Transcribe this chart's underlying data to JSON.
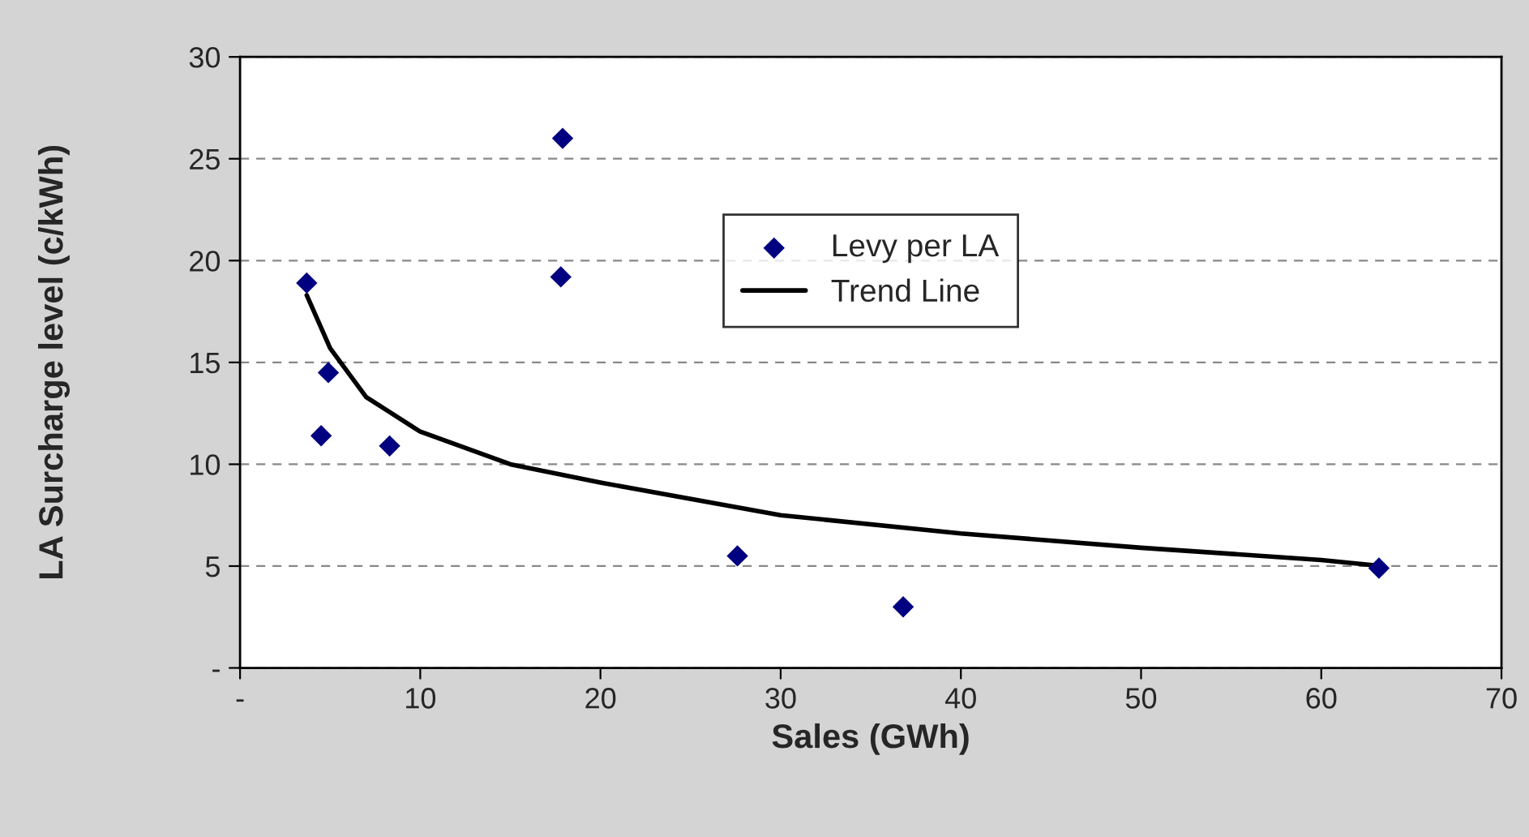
{
  "chart_data": {
    "type": "scatter",
    "xlabel": "Sales (GWh)",
    "ylabel": "LA Surcharge level (c/kWh)",
    "series": [
      {
        "name": "Levy per LA",
        "color": "#000080",
        "marker": "diamond",
        "x": [
          3.7,
          4.9,
          4.5,
          8.3,
          17.9,
          17.8,
          27.6,
          36.8,
          63.2
        ],
        "values": [
          18.9,
          14.5,
          11.4,
          10.9,
          26.0,
          19.2,
          5.5,
          3.0,
          4.9
        ]
      },
      {
        "name": "Trend Line",
        "type": "line",
        "color": "#000000",
        "marker": "none",
        "line_style": "solid",
        "x": [
          3.7,
          5,
          7,
          10,
          15,
          20,
          30,
          40,
          50,
          60,
          63.4
        ],
        "values": [
          18.3,
          15.7,
          13.3,
          11.6,
          10.0,
          9.1,
          7.5,
          6.6,
          5.9,
          5.3,
          5.0
        ]
      }
    ],
    "xlim": [
      0,
      70
    ],
    "xticks": [
      {
        "value": 0,
        "label": "-"
      },
      10,
      20,
      30,
      40,
      50,
      60,
      70
    ],
    "ylim": [
      0,
      30
    ],
    "yticks": [
      {
        "value": 0,
        "label": "-"
      },
      5,
      10,
      15,
      20,
      25,
      30
    ],
    "grid": "y",
    "legend": "center"
  }
}
